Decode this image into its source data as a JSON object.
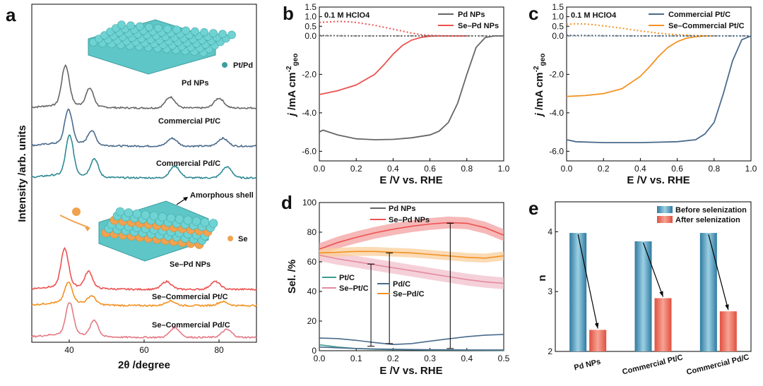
{
  "panels": {
    "a": "a",
    "b": "b",
    "c": "c",
    "d": "d",
    "e": "e"
  },
  "colors": {
    "pd": "#666666",
    "sepd": "#ec5250",
    "ptc": "#4a6b8c",
    "septc": "#f39223",
    "pdc": "#2e8a93",
    "sepdc": "#e47a85",
    "d_ptc": "#3d9e8c",
    "d_septc": "#e48aa0",
    "d_pdc": "#4a6b8c",
    "d_sepdc": "#f39223",
    "before": "#4a93b8",
    "after": "#ee6955"
  },
  "chart_data": [
    {
      "id": "a",
      "type": "line",
      "xlabel": "2θ /degree",
      "ylabel": "Intensity /arb. units",
      "xlim": [
        30,
        90
      ],
      "xticks": [
        40,
        60,
        80
      ],
      "series": [
        {
          "name": "Pd NPs",
          "peaks": [
            [
              39,
              1.0
            ],
            [
              45.5,
              0.45
            ],
            [
              67,
              0.28
            ],
            [
              80,
              0.25
            ]
          ]
        },
        {
          "name": "Commercial Pt/C",
          "peaks": [
            [
              39.8,
              0.85
            ],
            [
              46,
              0.35
            ],
            [
              67.5,
              0.2
            ],
            [
              81,
              0.2
            ]
          ]
        },
        {
          "name": "Commercial Pd/C",
          "peaks": [
            [
              40.1,
              1.0
            ],
            [
              46.7,
              0.45
            ],
            [
              68.2,
              0.3
            ],
            [
              82.1,
              0.28
            ]
          ]
        },
        {
          "name": "Se–Pd NPs",
          "peaks": [
            [
              38.8,
              0.95
            ],
            [
              45.2,
              0.4
            ],
            [
              66,
              0.2
            ],
            [
              79,
              0.2
            ]
          ]
        },
        {
          "name": "Se–Commercial Pt/C",
          "peaks": [
            [
              39.8,
              0.5
            ],
            [
              46,
              0.2
            ],
            [
              67,
              0.12
            ],
            [
              81,
              0.1
            ]
          ]
        },
        {
          "name": "Se–Commercial Pd/C",
          "peaks": [
            [
              40.1,
              0.8
            ],
            [
              46.7,
              0.4
            ],
            [
              68.2,
              0.25
            ],
            [
              82.1,
              0.2
            ]
          ]
        }
      ],
      "annotations": {
        "ptpd": "Pt/Pd",
        "se": "Se",
        "shell": "Amorphous shell"
      }
    },
    {
      "id": "b",
      "type": "line",
      "xlabel": "E /V vs. RHE",
      "ylabel": "j /mA cm-2 geo",
      "xlim": [
        0,
        1.0
      ],
      "ylim": [
        -6.5,
        1.5
      ],
      "xticks": [
        0.0,
        0.2,
        0.4,
        0.6,
        0.8,
        1.0
      ],
      "yticks": [
        -6,
        -4,
        -2,
        0,
        0.5,
        1,
        1.5
      ],
      "note": "0.1 M HClO4",
      "series": [
        {
          "name": "Pd NPs",
          "x": [
            0,
            0.02,
            0.1,
            0.2,
            0.3,
            0.4,
            0.5,
            0.6,
            0.65,
            0.7,
            0.75,
            0.8,
            0.85,
            0.9,
            0.95,
            1.0
          ],
          "y": [
            -5.0,
            -4.9,
            -5.15,
            -5.35,
            -5.4,
            -5.38,
            -5.3,
            -5.15,
            -4.95,
            -4.5,
            -3.5,
            -2.0,
            -0.6,
            -0.08,
            0,
            0
          ]
        },
        {
          "name": "Se–Pd NPs",
          "x": [
            0,
            0.1,
            0.2,
            0.3,
            0.35,
            0.4,
            0.45,
            0.5,
            0.55,
            0.6,
            0.65,
            0.7,
            0.8
          ],
          "y": [
            -3.05,
            -2.85,
            -2.55,
            -2.0,
            -1.5,
            -0.95,
            -0.5,
            -0.22,
            -0.08,
            -0.02,
            0,
            0,
            0
          ]
        },
        {
          "name": "Se–Pd NPs dotted",
          "x": [
            0,
            0.05,
            0.1,
            0.15,
            0.2,
            0.3,
            0.4,
            0.5,
            0.55,
            0.6,
            0.65,
            0.7,
            0.8
          ],
          "y": [
            0.7,
            0.73,
            0.75,
            0.74,
            0.7,
            0.55,
            0.35,
            0.15,
            0.07,
            0.03,
            0.01,
            0,
            0
          ]
        },
        {
          "name": "Pd NPs dotted",
          "x": [
            0,
            0.1,
            0.2,
            0.3,
            0.5,
            0.7,
            1.0
          ],
          "y": [
            0.02,
            0.01,
            0,
            0,
            0,
            0,
            0
          ]
        }
      ]
    },
    {
      "id": "c",
      "type": "line",
      "xlabel": "E /V vs. RHE",
      "ylabel": "j /mA cm-2 geo",
      "xlim": [
        0,
        1.0
      ],
      "ylim": [
        -6.5,
        1.5
      ],
      "xticks": [
        0.0,
        0.2,
        0.4,
        0.6,
        0.8,
        1.0
      ],
      "yticks": [
        -6,
        -4,
        -2,
        0,
        0.5,
        1,
        1.5
      ],
      "note": "0.1 M HClO4",
      "series": [
        {
          "name": "Commercial Pt/C",
          "x": [
            0,
            0.05,
            0.2,
            0.4,
            0.6,
            0.7,
            0.75,
            0.8,
            0.85,
            0.9,
            0.95,
            1.0
          ],
          "y": [
            -5.4,
            -5.5,
            -5.55,
            -5.55,
            -5.5,
            -5.4,
            -5.1,
            -4.5,
            -3.0,
            -1.3,
            -0.2,
            0
          ]
        },
        {
          "name": "Se–Commercial Pt/C",
          "x": [
            0,
            0.1,
            0.2,
            0.3,
            0.4,
            0.45,
            0.5,
            0.55,
            0.6,
            0.65,
            0.7,
            0.75,
            0.8
          ],
          "y": [
            -3.15,
            -3.1,
            -3.0,
            -2.75,
            -2.1,
            -1.6,
            -1.05,
            -0.6,
            -0.3,
            -0.12,
            -0.04,
            0,
            0
          ]
        },
        {
          "name": "Se–Commercial Pt/C dotted",
          "x": [
            0,
            0.05,
            0.1,
            0.15,
            0.2,
            0.3,
            0.4,
            0.5,
            0.6,
            0.7,
            0.75
          ],
          "y": [
            0.6,
            0.63,
            0.62,
            0.58,
            0.52,
            0.4,
            0.26,
            0.14,
            0.06,
            0.02,
            0
          ]
        },
        {
          "name": "Commercial Pt/C dotted",
          "x": [
            0,
            0.1,
            0.2,
            0.4,
            0.6,
            1.0
          ],
          "y": [
            0.03,
            0.02,
            0.01,
            0,
            0,
            0
          ]
        }
      ]
    },
    {
      "id": "d",
      "type": "line",
      "xlabel": "E /V vs. RHE",
      "ylabel": "Sel. /%",
      "xlim": [
        0,
        0.5
      ],
      "ylim": [
        0,
        100
      ],
      "xticks": [
        0.0,
        0.1,
        0.2,
        0.3,
        0.4,
        0.5
      ],
      "yticks": [
        0,
        20,
        40,
        60,
        80,
        100
      ],
      "series": [
        {
          "name": "Pd NPs",
          "x": [
            0,
            0.05,
            0.1,
            0.15,
            0.2,
            0.25,
            0.3,
            0.35,
            0.4,
            0.45,
            0.5
          ],
          "y": [
            8.5,
            8.2,
            7,
            5.5,
            4.2,
            4.8,
            6.5,
            8,
            9.5,
            10.5,
            11
          ]
        },
        {
          "name": "Se–Pd NPs",
          "x": [
            0,
            0.05,
            0.1,
            0.15,
            0.2,
            0.25,
            0.3,
            0.35,
            0.4,
            0.45,
            0.5
          ],
          "y": [
            68.5,
            73,
            76.5,
            79.5,
            82,
            84,
            85.5,
            86.5,
            86,
            83,
            78
          ]
        },
        {
          "name": "Pt/C",
          "x": [
            0,
            0.05,
            0.1,
            0.15,
            0.2,
            0.3,
            0.4,
            0.5
          ],
          "y": [
            4,
            2.5,
            1.5,
            1.0,
            0.7,
            0.5,
            0.4,
            0.3
          ]
        },
        {
          "name": "Se–Pt/C",
          "x": [
            0,
            0.05,
            0.1,
            0.15,
            0.2,
            0.25,
            0.3,
            0.35,
            0.4,
            0.45,
            0.5
          ],
          "y": [
            64.5,
            62,
            60,
            58,
            56,
            54,
            52,
            50,
            48,
            46.5,
            45.5
          ]
        },
        {
          "name": "Pd/C",
          "x": [
            0,
            0.05,
            0.1,
            0.15,
            0.2,
            0.25,
            0.3,
            0.35,
            0.4,
            0.45,
            0.5
          ],
          "y": [
            2.5,
            2,
            1.5,
            1.2,
            1,
            0.8,
            0.7,
            0.6,
            0.5,
            0.5,
            0.5
          ]
        },
        {
          "name": "Se–Pd/C",
          "x": [
            0,
            0.05,
            0.1,
            0.15,
            0.2,
            0.25,
            0.3,
            0.35,
            0.4,
            0.45,
            0.5
          ],
          "y": [
            66,
            66.5,
            67,
            67,
            66.5,
            66,
            65,
            64,
            63,
            62.5,
            64
          ]
        }
      ],
      "errorbars": [
        {
          "x": 0.14,
          "y1": 3,
          "y2": 58.5
        },
        {
          "x": 0.19,
          "y1": 4.8,
          "y2": 66
        },
        {
          "x": 0.355,
          "y1": 1.5,
          "y2": 86
        }
      ]
    },
    {
      "id": "e",
      "type": "bar",
      "ylabel": "n",
      "ylim": [
        2,
        4.5
      ],
      "yticks": [
        2,
        3,
        4
      ],
      "categories": [
        "Pd NPs",
        "Commercial Pt/C",
        "Commercial Pd/C"
      ],
      "series": [
        {
          "name": "Before selenization",
          "values": [
            3.98,
            3.84,
            3.98
          ]
        },
        {
          "name": "After selenization",
          "values": [
            2.36,
            2.89,
            2.67
          ]
        }
      ]
    }
  ]
}
